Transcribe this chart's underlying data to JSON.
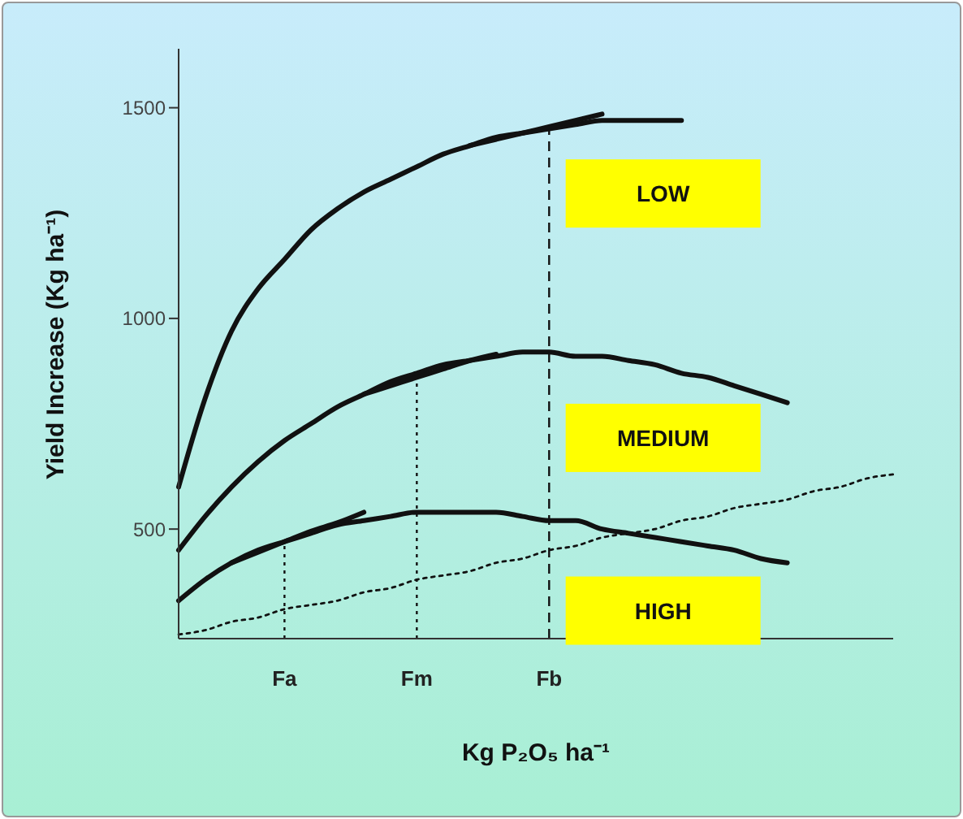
{
  "chart_data": {
    "type": "line",
    "xlabel": "Kg P₂O₅ ha⁻¹",
    "ylabel": "Yield Increase (Kg ha⁻¹)",
    "categories": [
      null,
      null,
      null,
      null,
      "Fa",
      null,
      null,
      null,
      null,
      "Fm",
      null,
      null,
      null,
      null,
      "Fb",
      null,
      null,
      null,
      null,
      null,
      null,
      null,
      null,
      null,
      null,
      null,
      null,
      null
    ],
    "ylim": [
      240,
      1640
    ],
    "yticks": [
      500,
      1000,
      1500
    ],
    "grid": false,
    "legend": false,
    "marker": "none",
    "series": [
      {
        "name": "LOW",
        "color": "#111111",
        "values": [
          600,
          810,
          970,
          1070,
          1140,
          1210,
          1260,
          1300,
          1330,
          1360,
          1390,
          1410,
          1430,
          1440,
          1450,
          1460,
          1470,
          1470,
          1470,
          1470,
          null,
          null,
          null,
          null,
          null,
          null,
          null,
          null
        ]
      },
      {
        "name": "MEDIUM",
        "color": "#111111",
        "values": [
          450,
          530,
          600,
          660,
          710,
          750,
          790,
          820,
          850,
          870,
          890,
          900,
          910,
          920,
          920,
          910,
          910,
          900,
          890,
          870,
          860,
          840,
          820,
          800,
          null,
          null,
          null,
          null
        ]
      },
      {
        "name": "HIGH",
        "color": "#111111",
        "values": [
          330,
          380,
          420,
          450,
          470,
          490,
          510,
          520,
          530,
          540,
          540,
          540,
          540,
          530,
          520,
          520,
          500,
          490,
          480,
          470,
          460,
          450,
          430,
          420,
          null,
          null,
          null,
          null
        ]
      },
      {
        "color": "#111111",
        "line_style": "dotted",
        "values": [
          250,
          260,
          280,
          290,
          310,
          320,
          330,
          350,
          360,
          380,
          390,
          400,
          420,
          430,
          450,
          460,
          480,
          490,
          500,
          520,
          530,
          550,
          560,
          570,
          590,
          600,
          620,
          630
        ]
      },
      {
        "color": "#111111",
        "values": [
          null,
          null,
          null,
          null,
          null,
          null,
          null,
          null,
          null,
          null,
          null,
          1410,
          1425,
          1440,
          1455,
          1470,
          1485,
          null,
          null,
          null,
          null,
          null,
          null,
          null,
          null,
          null,
          null,
          null
        ]
      },
      {
        "color": "#111111",
        "values": [
          null,
          null,
          null,
          null,
          null,
          null,
          null,
          820,
          840,
          860,
          880,
          900,
          915,
          null,
          null,
          null,
          null,
          null,
          null,
          null,
          null,
          null,
          null,
          null,
          null,
          null,
          null,
          null
        ]
      },
      {
        "color": "#111111",
        "values": [
          null,
          null,
          420,
          445,
          470,
          495,
          515,
          540,
          null,
          null,
          null,
          null,
          null,
          null,
          null,
          null,
          null,
          null,
          null,
          null,
          null,
          null,
          null,
          null,
          null,
          null,
          null,
          null
        ]
      }
    ],
    "ref_lines": [
      {
        "axis": "x",
        "value": "Fa",
        "line_style": "dotted",
        "color": "#111111"
      },
      {
        "axis": "x",
        "value": "Fm",
        "line_style": "dotted",
        "color": "#111111"
      },
      {
        "axis": "x",
        "value": "Fb",
        "line_style": "dashed",
        "color": "#111111"
      }
    ]
  }
}
